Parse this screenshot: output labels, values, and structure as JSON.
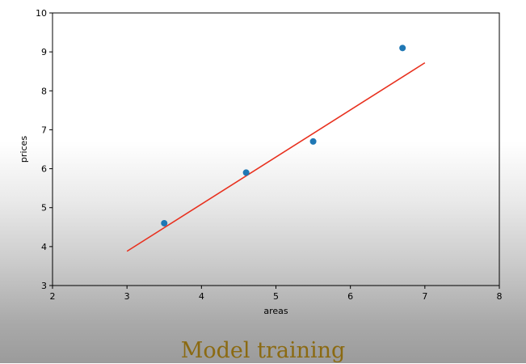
{
  "caption": "Model training",
  "chart_data": {
    "type": "scatter",
    "xlabel": "areas",
    "ylabel": "prices",
    "xlim": [
      2,
      8
    ],
    "ylim": [
      3,
      10
    ],
    "xticks": [
      2,
      3,
      4,
      5,
      6,
      7,
      8
    ],
    "yticks": [
      3,
      4,
      5,
      6,
      7,
      8,
      9,
      10
    ],
    "grid": false,
    "series": [
      {
        "kind": "scatter",
        "color": "#1f77b4",
        "x": [
          3.5,
          4.6,
          5.5,
          6.7
        ],
        "y": [
          4.6,
          5.9,
          6.7,
          9.1
        ]
      },
      {
        "kind": "line",
        "color": "#e8301e",
        "x": [
          3.0,
          7.0
        ],
        "y": [
          3.88,
          8.72
        ]
      }
    ]
  }
}
